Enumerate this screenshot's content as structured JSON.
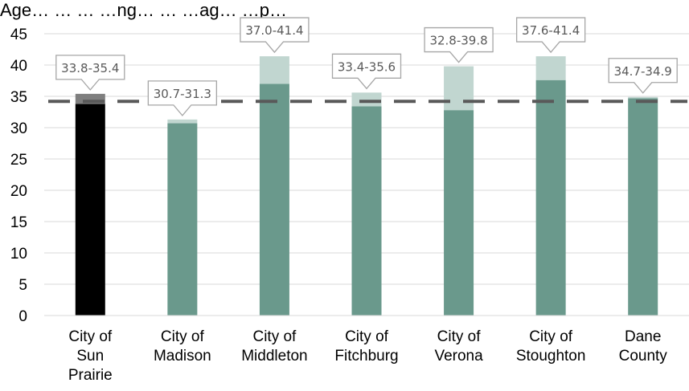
{
  "chart_data": {
    "type": "bar",
    "title": "Age… … … …ng… … …ag… …p…",
    "categories": [
      [
        "City of",
        "Sun",
        "Prairie"
      ],
      [
        "City of",
        "Madison"
      ],
      [
        "City of",
        "Middleton"
      ],
      [
        "City of",
        "Fitchburg"
      ],
      [
        "City of",
        "Verona"
      ],
      [
        "City of",
        "Stoughton"
      ],
      [
        "Dane",
        "County"
      ]
    ],
    "series": [
      {
        "values": [
          33.8,
          30.7,
          37.0,
          33.4,
          32.8,
          37.6,
          34.7
        ]
      },
      {
        "values": [
          1.6,
          0.6,
          4.4,
          2.2,
          7.0,
          3.8,
          0.2
        ]
      }
    ],
    "range_labels": [
      "33.8-35.4",
      "30.7-31.3",
      "37.0-41.4",
      "33.4-35.6",
      "32.8-39.8",
      "37.6-41.4",
      "34.7-34.9"
    ],
    "reference_line": 34.2,
    "ylim": [
      0,
      45
    ],
    "yticks": [
      0,
      5,
      10,
      15,
      20,
      25,
      30,
      35,
      40,
      45
    ],
    "grid": true,
    "legend": "none",
    "colors": {
      "highlight_base": "#000000",
      "highlight_top": "#7f7f7f",
      "base": "#6a998c",
      "top": "#c1d6d0",
      "reference": "#595959",
      "grid": "#d9d9d9",
      "callout_border": "#a6a6a6"
    }
  }
}
